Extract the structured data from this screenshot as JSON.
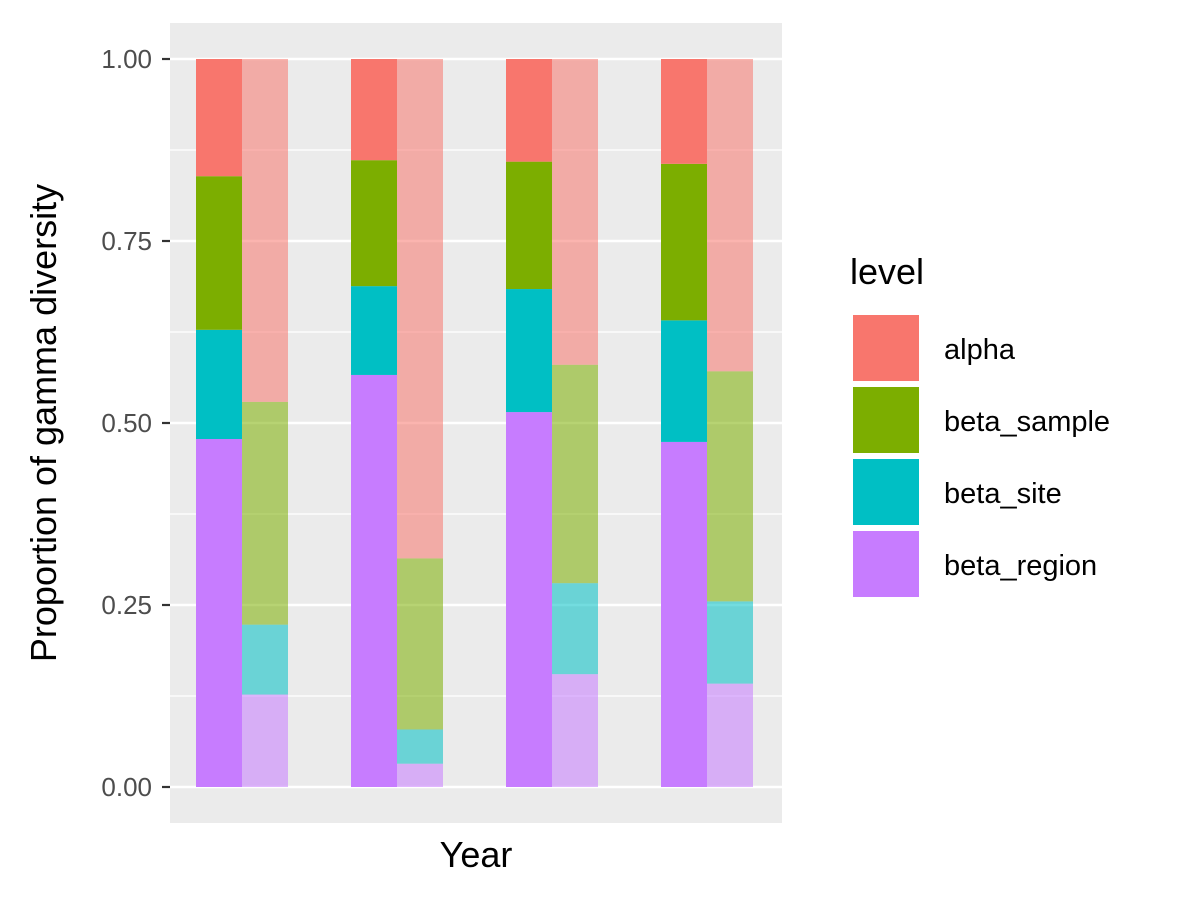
{
  "chart_data": {
    "type": "bar",
    "stacked": true,
    "xlabel": "Year",
    "ylabel": "Proportion of gamma diversity",
    "ylim": [
      0,
      1
    ],
    "yticks": [
      "0.00",
      "0.25",
      "0.50",
      "0.75",
      "1.00"
    ],
    "grid": true,
    "legend": {
      "title": "level",
      "placement": "right",
      "entries": [
        "alpha",
        "beta_sample",
        "beta_site",
        "beta_region"
      ]
    },
    "colors": {
      "alpha": "#F8766D",
      "beta_sample": "#7CAE00",
      "beta_site": "#00BFC4",
      "beta_region": "#C77CFF"
    },
    "groups": [
      {
        "bars": [
          {
            "opacity": "full",
            "values": {
              "beta_region": 0.478,
              "beta_site": 0.15,
              "beta_sample": 0.211,
              "alpha": 0.161
            }
          },
          {
            "opacity": "faded",
            "values": {
              "beta_region": 0.127,
              "beta_site": 0.096,
              "beta_sample": 0.306,
              "alpha": 0.471
            }
          }
        ]
      },
      {
        "bars": [
          {
            "opacity": "full",
            "values": {
              "beta_region": 0.566,
              "beta_site": 0.122,
              "beta_sample": 0.173,
              "alpha": 0.139
            }
          },
          {
            "opacity": "faded",
            "values": {
              "beta_region": 0.032,
              "beta_site": 0.047,
              "beta_sample": 0.235,
              "alpha": 0.686
            }
          }
        ]
      },
      {
        "bars": [
          {
            "opacity": "full",
            "values": {
              "beta_region": 0.515,
              "beta_site": 0.169,
              "beta_sample": 0.175,
              "alpha": 0.141
            }
          },
          {
            "opacity": "faded",
            "values": {
              "beta_region": 0.155,
              "beta_site": 0.125,
              "beta_sample": 0.3,
              "alpha": 0.42
            }
          }
        ]
      },
      {
        "bars": [
          {
            "opacity": "full",
            "values": {
              "beta_region": 0.474,
              "beta_site": 0.167,
              "beta_sample": 0.215,
              "alpha": 0.144
            }
          },
          {
            "opacity": "faded",
            "values": {
              "beta_region": 0.142,
              "beta_site": 0.113,
              "beta_sample": 0.316,
              "alpha": 0.429
            }
          }
        ]
      }
    ]
  }
}
